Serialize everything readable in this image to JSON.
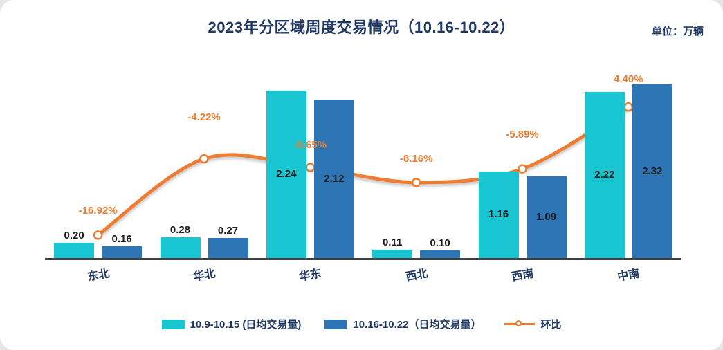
{
  "page": {
    "title": "2023年分区域周度交易情况（10.16-10.22）",
    "unit_label": "单位：万辆"
  },
  "chart_data": {
    "type": "combo-bar-line",
    "title": "2023年分区域周度交易情况（10.16-10.22）",
    "unit": "万辆",
    "categories": [
      "东北",
      "华北",
      "华东",
      "西北",
      "西南",
      "中南"
    ],
    "series": [
      {
        "name": "10.9-10.15 (日均交易量)",
        "type": "bar",
        "color": "#19c5d1",
        "values": [
          0.2,
          0.28,
          2.24,
          0.11,
          1.16,
          2.22
        ],
        "value_labels": [
          "0.20",
          "0.28",
          "2.24",
          "0.11",
          "1.16",
          "2.22"
        ]
      },
      {
        "name": "10.16-10.22（日均交易量）",
        "type": "bar",
        "color": "#2e75b6",
        "values": [
          0.16,
          0.27,
          2.12,
          0.1,
          1.09,
          2.32
        ],
        "value_labels": [
          "0.16",
          "0.27",
          "2.12",
          "0.10",
          "1.09",
          "2.32"
        ]
      },
      {
        "name": "环比",
        "type": "line",
        "color": "#ed7d31",
        "unit": "%",
        "values": [
          -16.92,
          -4.22,
          -5.65,
          -8.16,
          -5.89,
          4.4
        ],
        "value_labels": [
          "-16.92%",
          "-4.22%",
          "-5.65%",
          "-8.16%",
          "-5.89%",
          "4.40%"
        ]
      }
    ],
    "bar_axis": {
      "min": 0,
      "max": 2.5,
      "visible": false
    },
    "line_axis": {
      "visible": false
    },
    "grid": false,
    "legend_position": "bottom"
  },
  "colors": {
    "title": "#203864",
    "bar_label": "#1a1a1a",
    "pct_label": "#ed7d31",
    "axis_line": "#404040",
    "background": "#e6e6e6",
    "card": "#ffffff"
  }
}
